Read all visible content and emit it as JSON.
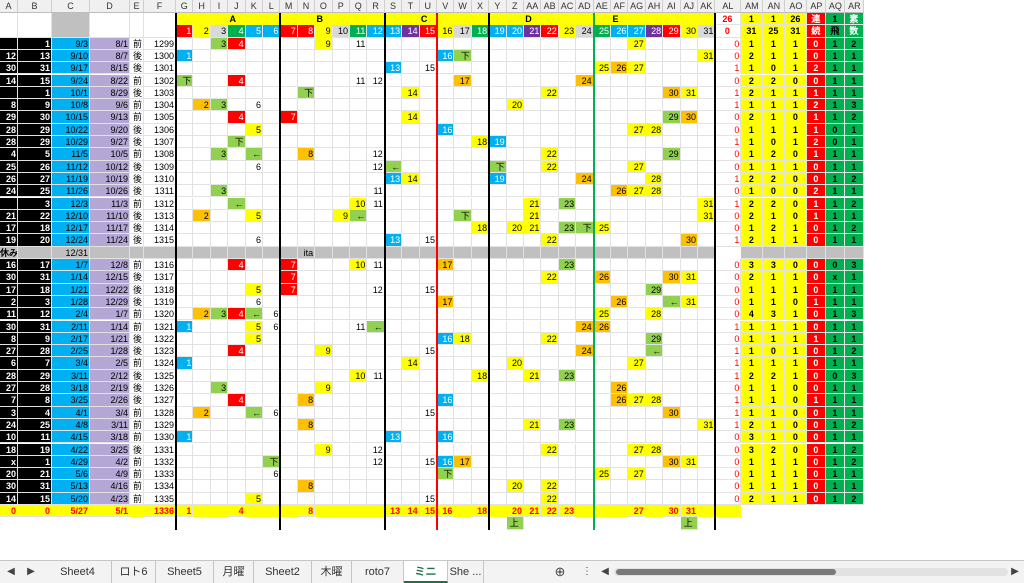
{
  "columns": [
    "A",
    "B",
    "C",
    "D",
    "E",
    "F",
    "G",
    "H",
    "I",
    "J",
    "K",
    "L",
    "M",
    "N",
    "O",
    "P",
    "Q",
    "R",
    "S",
    "T",
    "U",
    "V",
    "W",
    "X",
    "Y",
    "Z",
    "AA",
    "AB",
    "AC",
    "AD",
    "AE",
    "AF",
    "AG",
    "AH",
    "AI",
    "AJ",
    "AK",
    "AL",
    "AM",
    "AN",
    "AO",
    "AP",
    "AQ",
    "AR"
  ],
  "group_labels": {
    "A": "A",
    "B": "B",
    "C": "C",
    "D": "D",
    "E": "E"
  },
  "header1": {
    "al": "26",
    "am": "1",
    "an": "1",
    "ao": "26",
    "ap": "連",
    "aq": "1",
    "ar": "素"
  },
  "header2": {
    "marker": "回",
    "numbers": [
      "1",
      "2",
      "3",
      "4",
      "5",
      "6",
      "7",
      "8",
      "9",
      "10",
      "11",
      "12",
      "13",
      "14",
      "15",
      "16",
      "17",
      "18",
      "19",
      "20",
      "21",
      "22",
      "23",
      "24",
      "25",
      "26",
      "27",
      "28",
      "29",
      "30",
      "31"
    ],
    "al": "0",
    "am": "31",
    "an": "25",
    "ao": "31",
    "ap": "続",
    "aq": "飛",
    "ar": "数"
  },
  "rows": [
    {
      "a": "",
      "b": "1",
      "c": "9/3",
      "d": "8/1",
      "e": "前",
      "f": "1299",
      "cells": {
        "I": "3",
        "J": "4",
        "O": "9",
        "Q": "11",
        "AG": "27",
        "AL": "0"
      },
      "tail": [
        "1",
        "1",
        "1",
        "0",
        "1",
        "2"
      ]
    },
    {
      "a": "12",
      "b": "13",
      "c": "9/10",
      "d": "8/7",
      "e": "後",
      "f": "1300",
      "cells": {
        "G": "1",
        "V": "16",
        "W": "下",
        "AK": "31",
        "AL": "0"
      },
      "tail": [
        "2",
        "1",
        "1",
        "0",
        "1",
        "1"
      ]
    },
    {
      "a": "30",
      "b": "31",
      "c": "9/17",
      "d": "8/15",
      "e": "後",
      "f": "1301",
      "cells": {
        "S": "13",
        "U": "15",
        "AE": "25",
        "AF": "26",
        "AG": "27",
        "AL": "1"
      },
      "tail": [
        "1",
        "0",
        "1",
        "2",
        "1",
        "1"
      ]
    },
    {
      "a": "14",
      "b": "15",
      "c": "9/24",
      "d": "8/22",
      "e": "前",
      "f": "1302",
      "cells": {
        "G": "下",
        "J": "4",
        "Q": "11",
        "R": "12",
        "W": "17",
        "AD": "24",
        "AL": "0"
      },
      "tail": [
        "2",
        "2",
        "0",
        "0",
        "1",
        "1"
      ]
    },
    {
      "a": "",
      "b": "1",
      "c": "10/1",
      "d": "8/29",
      "e": "後",
      "f": "1303",
      "cells": {
        "N": "下",
        "T": "14",
        "AB": "22",
        "AI": "30",
        "AJ": "31",
        "AL": "1"
      },
      "tail": [
        "2",
        "1",
        "1",
        "1",
        "1",
        "1"
      ]
    },
    {
      "a": "8",
      "b": "9",
      "c": "10/8",
      "d": "9/6",
      "e": "前",
      "f": "1304",
      "cells": {
        "H": "2",
        "I": "3",
        "K": "6",
        "Z": "20",
        "AL": "1"
      },
      "tail": [
        "1",
        "1",
        "1",
        "2",
        "1",
        "3"
      ]
    },
    {
      "a": "29",
      "b": "30",
      "c": "10/15",
      "d": "9/13",
      "e": "前",
      "f": "1305",
      "cells": {
        "J": "4",
        "M": "7",
        "T": "14",
        "AI": "29",
        "AJ": "30",
        "AL": "0"
      },
      "tail": [
        "2",
        "1",
        "0",
        "1",
        "1",
        "2"
      ]
    },
    {
      "a": "28",
      "b": "29",
      "c": "10/22",
      "d": "9/20",
      "e": "後",
      "f": "1306",
      "cells": {
        "K": "5",
        "V": "16",
        "AG": "27",
        "AH": "28",
        "AL": "0"
      },
      "tail": [
        "1",
        "1",
        "1",
        "1",
        "0",
        "1"
      ]
    },
    {
      "a": "28",
      "b": "29",
      "c": "10/29",
      "d": "9/27",
      "e": "後",
      "f": "1307",
      "cells": {
        "J": "下",
        "X": "18",
        "Y": "19",
        "AL": "1"
      },
      "tail": [
        "1",
        "0",
        "1",
        "2",
        "0",
        "1"
      ]
    },
    {
      "a": "4",
      "b": "5",
      "c": "11/5",
      "d": "10/5",
      "e": "前",
      "f": "1308",
      "cells": {
        "I": "3",
        "K": "←",
        "N": "8",
        "R": "12",
        "AB": "22",
        "AI": "29",
        "AL": "0"
      },
      "tail": [
        "1",
        "2",
        "0",
        "1",
        "1",
        "1"
      ]
    },
    {
      "a": "25",
      "b": "26",
      "c": "11/12",
      "d": "10/12",
      "e": "後",
      "f": "1309",
      "cells": {
        "K": "6",
        "R": "12",
        "S": "←",
        "Y": "下",
        "AB": "22",
        "AG": "27",
        "AL": "0"
      },
      "tail": [
        "1",
        "1",
        "1",
        "0",
        "1",
        "1"
      ]
    },
    {
      "a": "26",
      "b": "27",
      "c": "11/19",
      "d": "10/19",
      "e": "後",
      "f": "1310",
      "cells": {
        "S": "13",
        "T": "14",
        "Y": "19",
        "AD": "24",
        "AH": "28",
        "AL": "1"
      },
      "tail": [
        "2",
        "2",
        "0",
        "0",
        "1",
        "2"
      ]
    },
    {
      "a": "24",
      "b": "25",
      "c": "11/26",
      "d": "10/26",
      "e": "後",
      "f": "1311",
      "cells": {
        "I": "3",
        "R": "11",
        "AF": "26",
        "AG": "27",
        "AH": "28",
        "AL": "0"
      },
      "tail": [
        "1",
        "0",
        "0",
        "2",
        "1",
        "1"
      ]
    },
    {
      "a": "",
      "b": "3",
      "c": "12/3",
      "d": "11/3",
      "e": "前",
      "f": "1312",
      "cells": {
        "J": "←",
        "Q": "10",
        "R": "11",
        "AA": "21",
        "AC": "23",
        "AK": "31",
        "AL": "1"
      },
      "tail": [
        "2",
        "2",
        "0",
        "1",
        "1",
        "2"
      ]
    },
    {
      "a": "21",
      "b": "22",
      "c": "12/10",
      "d": "11/10",
      "e": "後",
      "f": "1313",
      "cells": {
        "H": "2",
        "K": "5",
        "P": "9",
        "Q": "←",
        "W": "下",
        "AA": "21",
        "AK": "31",
        "AL": "0"
      },
      "tail": [
        "2",
        "1",
        "0",
        "1",
        "1",
        "1"
      ]
    },
    {
      "a": "17",
      "b": "18",
      "c": "12/17",
      "d": "11/17",
      "e": "後",
      "f": "1314",
      "cells": {
        "X": "18",
        "Z": "20",
        "AA": "21",
        "AC": "23",
        "AD": "下",
        "AE": "25",
        "AL": "0"
      },
      "tail": [
        "1",
        "2",
        "1",
        "0",
        "1",
        "2"
      ]
    },
    {
      "a": "19",
      "b": "20",
      "c": "12/24",
      "d": "11/24",
      "e": "後",
      "f": "1315",
      "cells": {
        "K": "6",
        "S": "13",
        "U": "15",
        "AB": "22",
        "AJ": "30",
        "AL": "1"
      },
      "tail": [
        "2",
        "1",
        "1",
        "0",
        "1",
        "1"
      ]
    },
    {
      "a": "休み",
      "b": "",
      "c": "12/31",
      "d": "",
      "e": "",
      "f": "",
      "cells": {
        "N": "ita"
      },
      "tail": [
        "",
        "",
        "",
        "",
        "",
        ""
      ]
    },
    {
      "a": "16",
      "b": "17",
      "c": "1/7",
      "d": "12/8",
      "e": "前",
      "f": "1316",
      "cells": {
        "J": "4",
        "M": "7",
        "Q": "10",
        "R": "11",
        "V": "17",
        "AC": "23",
        "AL": "0"
      },
      "tail": [
        "3",
        "3",
        "0",
        "0",
        "0",
        "3"
      ]
    },
    {
      "a": "30",
      "b": "31",
      "c": "1/14",
      "d": "12/15",
      "e": "後",
      "f": "1317",
      "cells": {
        "M": "7",
        "AB": "22",
        "AE": "26",
        "AI": "30",
        "AJ": "31",
        "AL": "0"
      },
      "tail": [
        "2",
        "1",
        "1",
        "0",
        "x",
        "1"
      ]
    },
    {
      "a": "17",
      "b": "18",
      "c": "1/21",
      "d": "12/22",
      "e": "後",
      "f": "1318",
      "cells": {
        "K": "5",
        "M": "7",
        "R": "12",
        "U": "15",
        "AH": "29",
        "AL": "0"
      },
      "tail": [
        "1",
        "1",
        "1",
        "0",
        "1",
        "1"
      ]
    },
    {
      "a": "2",
      "b": "3",
      "c": "1/28",
      "d": "12/29",
      "e": "後",
      "f": "1319",
      "cells": {
        "K": "6",
        "V": "17",
        "AF": "26",
        "AI": "←",
        "AJ": "31",
        "AL": "0"
      },
      "tail": [
        "1",
        "1",
        "0",
        "1",
        "1",
        "1"
      ]
    },
    {
      "a": "11",
      "b": "12",
      "c": "2/4",
      "d": "1/7",
      "e": "前",
      "f": "1320",
      "cells": {
        "H": "2",
        "I": "3",
        "J": "4",
        "K": "←",
        "L": "6",
        "AE": "25",
        "AH": "28",
        "AL": "0"
      },
      "tail": [
        "4",
        "3",
        "1",
        "0",
        "1",
        "3"
      ]
    },
    {
      "a": "30",
      "b": "31",
      "c": "2/11",
      "d": "1/14",
      "e": "前",
      "f": "1321",
      "cells": {
        "G": "1",
        "K": "5",
        "L": "6",
        "Q": "11",
        "R": "←",
        "AD": "24",
        "AE": "26",
        "AL": "1"
      },
      "tail": [
        "1",
        "1",
        "1",
        "0",
        "1",
        "1"
      ]
    },
    {
      "a": "8",
      "b": "9",
      "c": "2/17",
      "d": "1/21",
      "e": "後",
      "f": "1322",
      "cells": {
        "K": "5",
        "V": "16",
        "W": "18",
        "AB": "22",
        "AH": "29",
        "AL": "0"
      },
      "tail": [
        "1",
        "1",
        "1",
        "1",
        "1",
        "1"
      ]
    },
    {
      "a": "27",
      "b": "28",
      "c": "2/25",
      "d": "1/28",
      "e": "後",
      "f": "1323",
      "cells": {
        "J": "4",
        "O": "9",
        "U": "15",
        "AD": "24",
        "AH": "←",
        "AL": "1"
      },
      "tail": [
        "1",
        "0",
        "1",
        "0",
        "1",
        "2"
      ]
    },
    {
      "a": "6",
      "b": "7",
      "c": "3/4",
      "d": "2/5",
      "e": "前",
      "f": "1324",
      "cells": {
        "G": "1",
        "T": "14",
        "Z": "20",
        "AG": "27",
        "AL": "1"
      },
      "tail": [
        "1",
        "1",
        "1",
        "0",
        "1",
        "1"
      ]
    },
    {
      "a": "28",
      "b": "29",
      "c": "3/11",
      "d": "2/12",
      "e": "後",
      "f": "1325",
      "cells": {
        "Q": "10",
        "R": "11",
        "X": "18",
        "AA": "21",
        "AC": "23",
        "AL": "1"
      },
      "tail": [
        "2",
        "2",
        "1",
        "0",
        "0",
        "3"
      ]
    },
    {
      "a": "27",
      "b": "28",
      "c": "3/18",
      "d": "2/19",
      "e": "後",
      "f": "1326",
      "cells": {
        "I": "3",
        "O": "9",
        "AF": "26",
        "AL": "0"
      },
      "tail": [
        "1",
        "1",
        "0",
        "0",
        "1",
        "1"
      ]
    },
    {
      "a": "7",
      "b": "8",
      "c": "3/25",
      "d": "2/26",
      "e": "後",
      "f": "1327",
      "cells": {
        "J": "4",
        "N": "8",
        "V": "16",
        "AF": "26",
        "AG": "27",
        "AH": "28",
        "AL": "1"
      },
      "tail": [
        "1",
        "1",
        "0",
        "1",
        "1",
        "1"
      ]
    },
    {
      "a": "3",
      "b": "4",
      "c": "4/1",
      "d": "3/4",
      "e": "前",
      "f": "1328",
      "cells": {
        "H": "2",
        "K": "←",
        "L": "6",
        "U": "15",
        "AI": "30",
        "AL": "1"
      },
      "tail": [
        "1",
        "1",
        "0",
        "0",
        "1",
        "1"
      ]
    },
    {
      "a": "24",
      "b": "25",
      "c": "4/8",
      "d": "3/11",
      "e": "前",
      "f": "1329",
      "cells": {
        "N": "8",
        "AA": "21",
        "AC": "23",
        "AK": "31",
        "AL": "1"
      },
      "tail": [
        "2",
        "1",
        "0",
        "0",
        "1",
        "2"
      ]
    },
    {
      "a": "10",
      "b": "11",
      "c": "4/15",
      "d": "3/18",
      "e": "前",
      "f": "1330",
      "cells": {
        "G": "1",
        "S": "13",
        "V": "16",
        "AL": "0"
      },
      "tail": [
        "3",
        "1",
        "0",
        "0",
        "1",
        "1"
      ]
    },
    {
      "a": "18",
      "b": "19",
      "c": "4/22",
      "d": "3/25",
      "e": "後",
      "f": "1331",
      "cells": {
        "O": "9",
        "R": "12",
        "AB": "22",
        "AG": "27",
        "AH": "28",
        "AL": "0"
      },
      "tail": [
        "3",
        "2",
        "0",
        "0",
        "1",
        "2"
      ]
    },
    {
      "a": "x",
      "b": "1",
      "c": "4/29",
      "d": "4/2",
      "e": "前",
      "f": "1332",
      "cells": {
        "L": "下",
        "R": "12",
        "U": "15",
        "V": "16",
        "W": "17",
        "AI": "30",
        "AJ": "31",
        "AL": "0"
      },
      "tail": [
        "1",
        "1",
        "1",
        "0",
        "1",
        "2"
      ]
    },
    {
      "a": "20",
      "b": "21",
      "c": "5/6",
      "d": "4/9",
      "e": "前",
      "f": "1333",
      "cells": {
        "L": "6",
        "V": "下",
        "AE": "25",
        "AG": "27",
        "AL": "0"
      },
      "tail": [
        "1",
        "1",
        "1",
        "0",
        "1",
        "1"
      ]
    },
    {
      "a": "30",
      "b": "31",
      "c": "5/13",
      "d": "4/16",
      "e": "前",
      "f": "1334",
      "cells": {
        "N": "8",
        "Z": "20",
        "AB": "22",
        "AL": "0"
      },
      "tail": [
        "1",
        "1",
        "1",
        "0",
        "1",
        "1"
      ]
    },
    {
      "a": "14",
      "b": "15",
      "c": "5/20",
      "d": "4/23",
      "e": "前",
      "f": "1335",
      "cells": {
        "K": "5",
        "U": "15",
        "AB": "22",
        "AL": "0"
      },
      "tail": [
        "2",
        "1",
        "1",
        "0",
        "1",
        "2"
      ]
    }
  ],
  "total_row": {
    "a": "0",
    "b": "0",
    "c": "5/27",
    "d": "5/1",
    "e": "",
    "f": "1336",
    "cells": {
      "G": "1",
      "J": "4",
      "N": "8",
      "S": "13",
      "T": "14",
      "U": "15",
      "V": "16",
      "X": "18",
      "Z": "20",
      "AA": "21",
      "AB": "22",
      "AC": "23",
      "AG": "27",
      "AI": "30",
      "AJ": "31"
    },
    "tail": [
      "",
      "",
      "",
      "",
      "",
      ""
    ]
  },
  "extra_row": {
    "cells": {
      "Z": "上",
      "AJ": "上"
    }
  },
  "tabs": [
    "Sheet4",
    "ロト6",
    "Sheet5",
    "月曜",
    "Sheet2",
    "木曜",
    "roto7",
    "ミニ",
    "She ..."
  ],
  "active_tab": "ミニ",
  "nav": {
    "prev": "◀",
    "next": "▶",
    "add": "⊕",
    "more": "⋮",
    "scroll_left": "◀",
    "scroll_right": "▶"
  },
  "colors": {
    "yellow": "#ffff00",
    "red": "#ff0000",
    "orange": "#ffc000",
    "blue": "#00b0f0",
    "lightblue": "#9bc2e6",
    "green": "#92d050",
    "darkgreen": "#00b050",
    "purple": "#7030a0",
    "gray": "#808080",
    "lightgray": "#d9d9d9",
    "pink": "#ffccff",
    "lilac": "#b4a7d6",
    "black": "#000000"
  }
}
